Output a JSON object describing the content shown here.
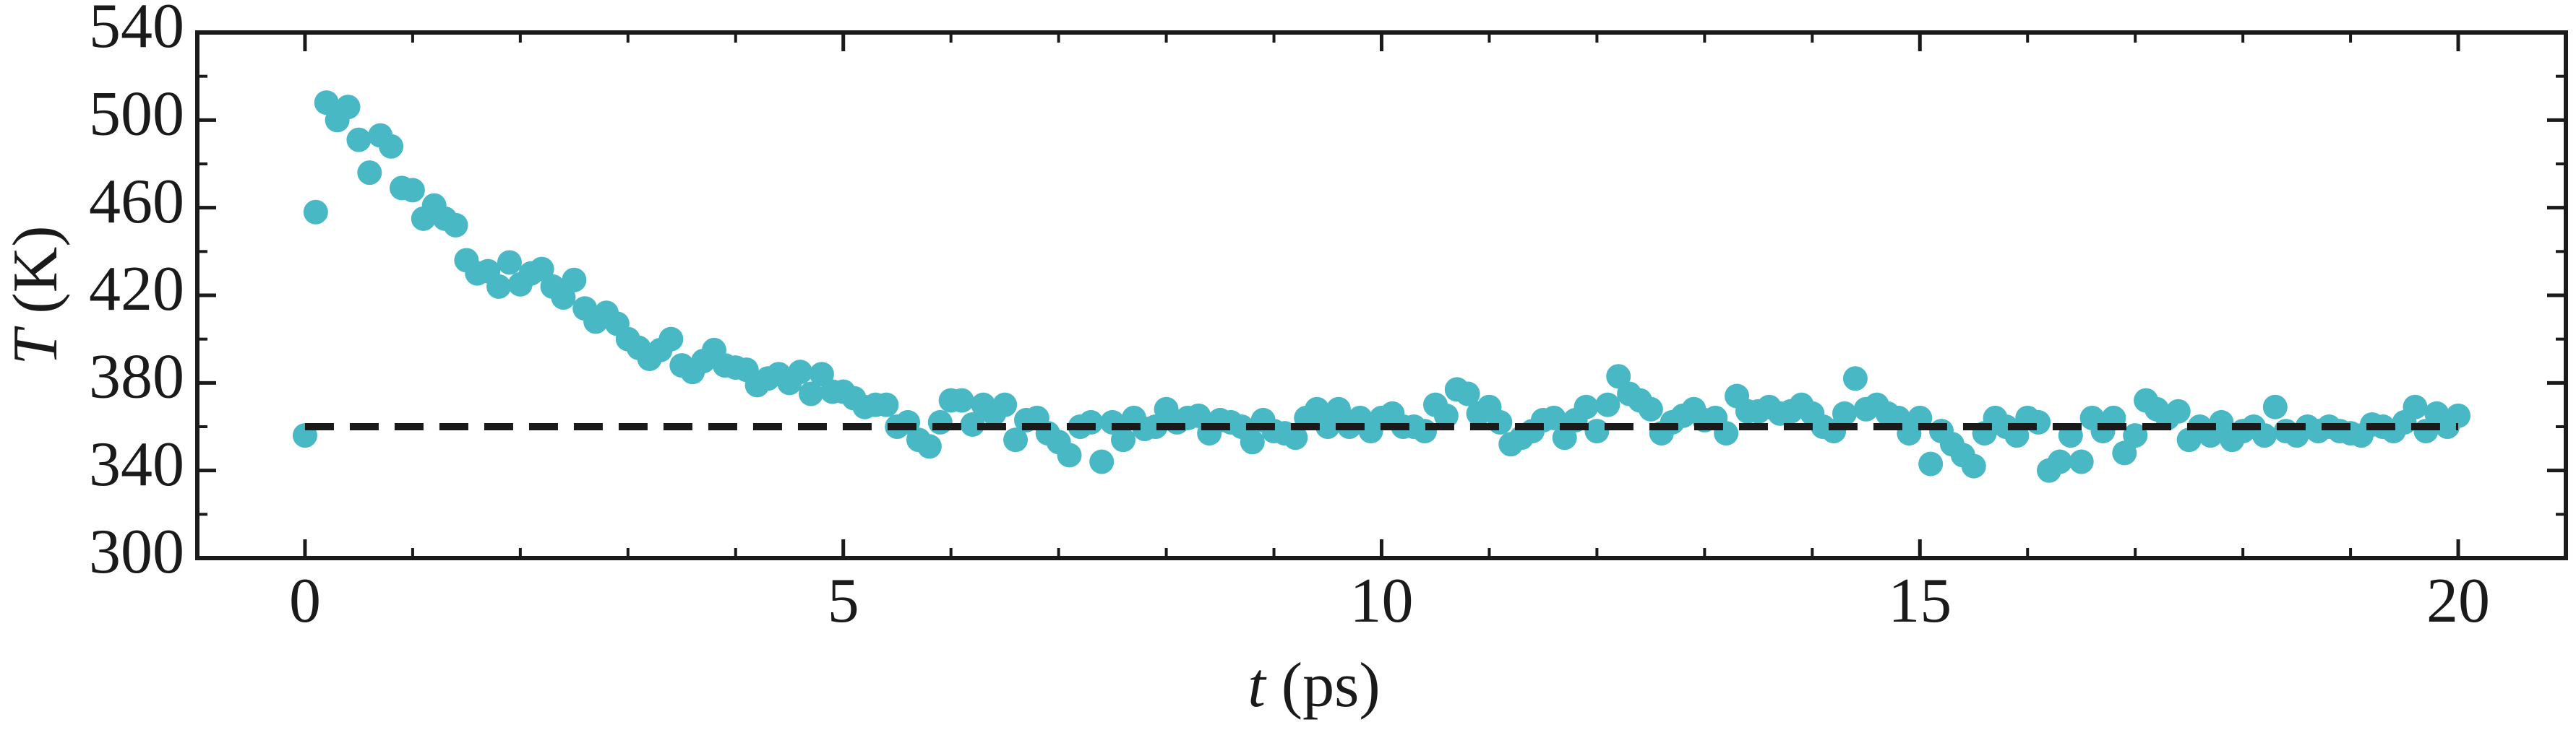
{
  "chart_data": {
    "type": "scatter",
    "xlabel": {
      "symbol": "t",
      "unit": "(ps)"
    },
    "ylabel": {
      "symbol": "T",
      "unit": "(K)"
    },
    "color": "#48b9c4",
    "xlim": [
      -1,
      21
    ],
    "ylim": [
      300,
      540
    ],
    "xticks": [
      0,
      5,
      10,
      15,
      20
    ],
    "yticks": [
      300,
      340,
      380,
      420,
      460,
      500,
      540
    ],
    "xminorticks": [
      -1,
      1,
      2,
      3,
      4,
      6,
      7,
      8,
      9,
      11,
      12,
      13,
      14,
      16,
      17,
      18,
      19,
      21
    ],
    "yminorticks": [
      320,
      360,
      400,
      440,
      480,
      520
    ],
    "reference_line": {
      "value": 360,
      "x": [
        0,
        20
      ],
      "color": "#1a1a1a",
      "style": "dashed"
    },
    "x": [
      0,
      0.1,
      0.2,
      0.3,
      0.4,
      0.5,
      0.6,
      0.7,
      0.8,
      0.9,
      1,
      1.1,
      1.2,
      1.3,
      1.4,
      1.5,
      1.6,
      1.7,
      1.8,
      1.9,
      2,
      2.1,
      2.2,
      2.3,
      2.4,
      2.5,
      2.6,
      2.7,
      2.8,
      2.9,
      3,
      3.1,
      3.2,
      3.3,
      3.4,
      3.5,
      3.6,
      3.7,
      3.8,
      3.9,
      4,
      4.1,
      4.2,
      4.3,
      4.4,
      4.5,
      4.6,
      4.7,
      4.8,
      4.9,
      5,
      5.1,
      5.2,
      5.3,
      5.4,
      5.5,
      5.6,
      5.7,
      5.8,
      5.9,
      6,
      6.1,
      6.2,
      6.3,
      6.4,
      6.5,
      6.6,
      6.7,
      6.8,
      6.9,
      7,
      7.1,
      7.2,
      7.3,
      7.4,
      7.5,
      7.6,
      7.7,
      7.8,
      7.9,
      8,
      8.1,
      8.2,
      8.3,
      8.4,
      8.5,
      8.6,
      8.7,
      8.8,
      8.9,
      9,
      9.1,
      9.2,
      9.3,
      9.4,
      9.5,
      9.6,
      9.7,
      9.8,
      9.9,
      10,
      10.1,
      10.2,
      10.3,
      10.4,
      10.5,
      10.6,
      10.7,
      10.8,
      10.9,
      11,
      11.1,
      11.2,
      11.3,
      11.4,
      11.5,
      11.6,
      11.7,
      11.8,
      11.9,
      12,
      12.1,
      12.2,
      12.3,
      12.4,
      12.5,
      12.6,
      12.7,
      12.8,
      12.9,
      13,
      13.1,
      13.2,
      13.3,
      13.4,
      13.5,
      13.6,
      13.7,
      13.8,
      13.9,
      14,
      14.1,
      14.2,
      14.3,
      14.4,
      14.5,
      14.6,
      14.7,
      14.8,
      14.9,
      15,
      15.1,
      15.2,
      15.3,
      15.4,
      15.5,
      15.6,
      15.7,
      15.8,
      15.9,
      16,
      16.1,
      16.2,
      16.3,
      16.4,
      16.5,
      16.6,
      16.7,
      16.8,
      16.9,
      17,
      17.1,
      17.2,
      17.3,
      17.4,
      17.5,
      17.6,
      17.7,
      17.8,
      17.9,
      18,
      18.1,
      18.2,
      18.3,
      18.4,
      18.5,
      18.6,
      18.7,
      18.8,
      18.9,
      19,
      19.1,
      19.2,
      19.3,
      19.4,
      19.5,
      19.6,
      19.7,
      19.8,
      19.9,
      20
    ],
    "values": [
      356,
      458,
      508,
      500,
      506,
      491,
      476,
      493,
      488,
      469,
      468,
      455,
      461,
      455,
      452,
      436,
      430,
      431,
      424,
      435,
      425,
      430,
      432,
      424,
      419,
      427,
      414,
      408,
      412,
      407,
      400,
      396,
      391,
      395,
      400,
      388,
      385,
      390,
      395,
      388,
      387,
      386,
      379,
      382,
      384,
      380,
      385,
      375,
      384,
      376,
      376,
      373,
      369,
      370,
      370,
      360,
      362,
      354,
      351,
      362,
      372,
      372,
      361,
      370,
      366,
      370,
      354,
      363,
      364,
      357,
      353,
      347,
      360,
      362,
      344,
      362,
      354,
      364,
      359,
      360,
      368,
      362,
      364,
      365,
      357,
      363,
      362,
      360,
      353,
      363,
      358,
      357,
      355,
      364,
      368,
      360,
      368,
      360,
      364,
      358,
      364,
      366,
      360,
      360,
      358,
      370,
      365,
      377,
      375,
      366,
      369,
      362,
      352,
      355,
      358,
      363,
      364,
      355,
      363,
      369,
      358,
      370,
      383,
      375,
      372,
      368,
      357,
      362,
      365,
      368,
      363,
      364,
      357,
      374,
      367,
      367,
      369,
      366,
      367,
      370,
      366,
      360,
      358,
      366,
      382,
      368,
      370,
      366,
      364,
      357,
      364,
      343,
      358,
      352,
      347,
      342,
      357,
      364,
      360,
      356,
      364,
      362,
      340,
      344,
      356,
      344,
      364,
      358,
      364,
      348,
      356,
      372,
      368,
      364,
      367,
      354,
      360,
      356,
      362,
      354,
      358,
      360,
      356,
      369,
      358,
      356,
      360,
      358,
      360,
      358,
      357,
      356,
      361,
      360,
      358,
      362,
      369,
      358,
      366,
      360,
      365
    ]
  }
}
